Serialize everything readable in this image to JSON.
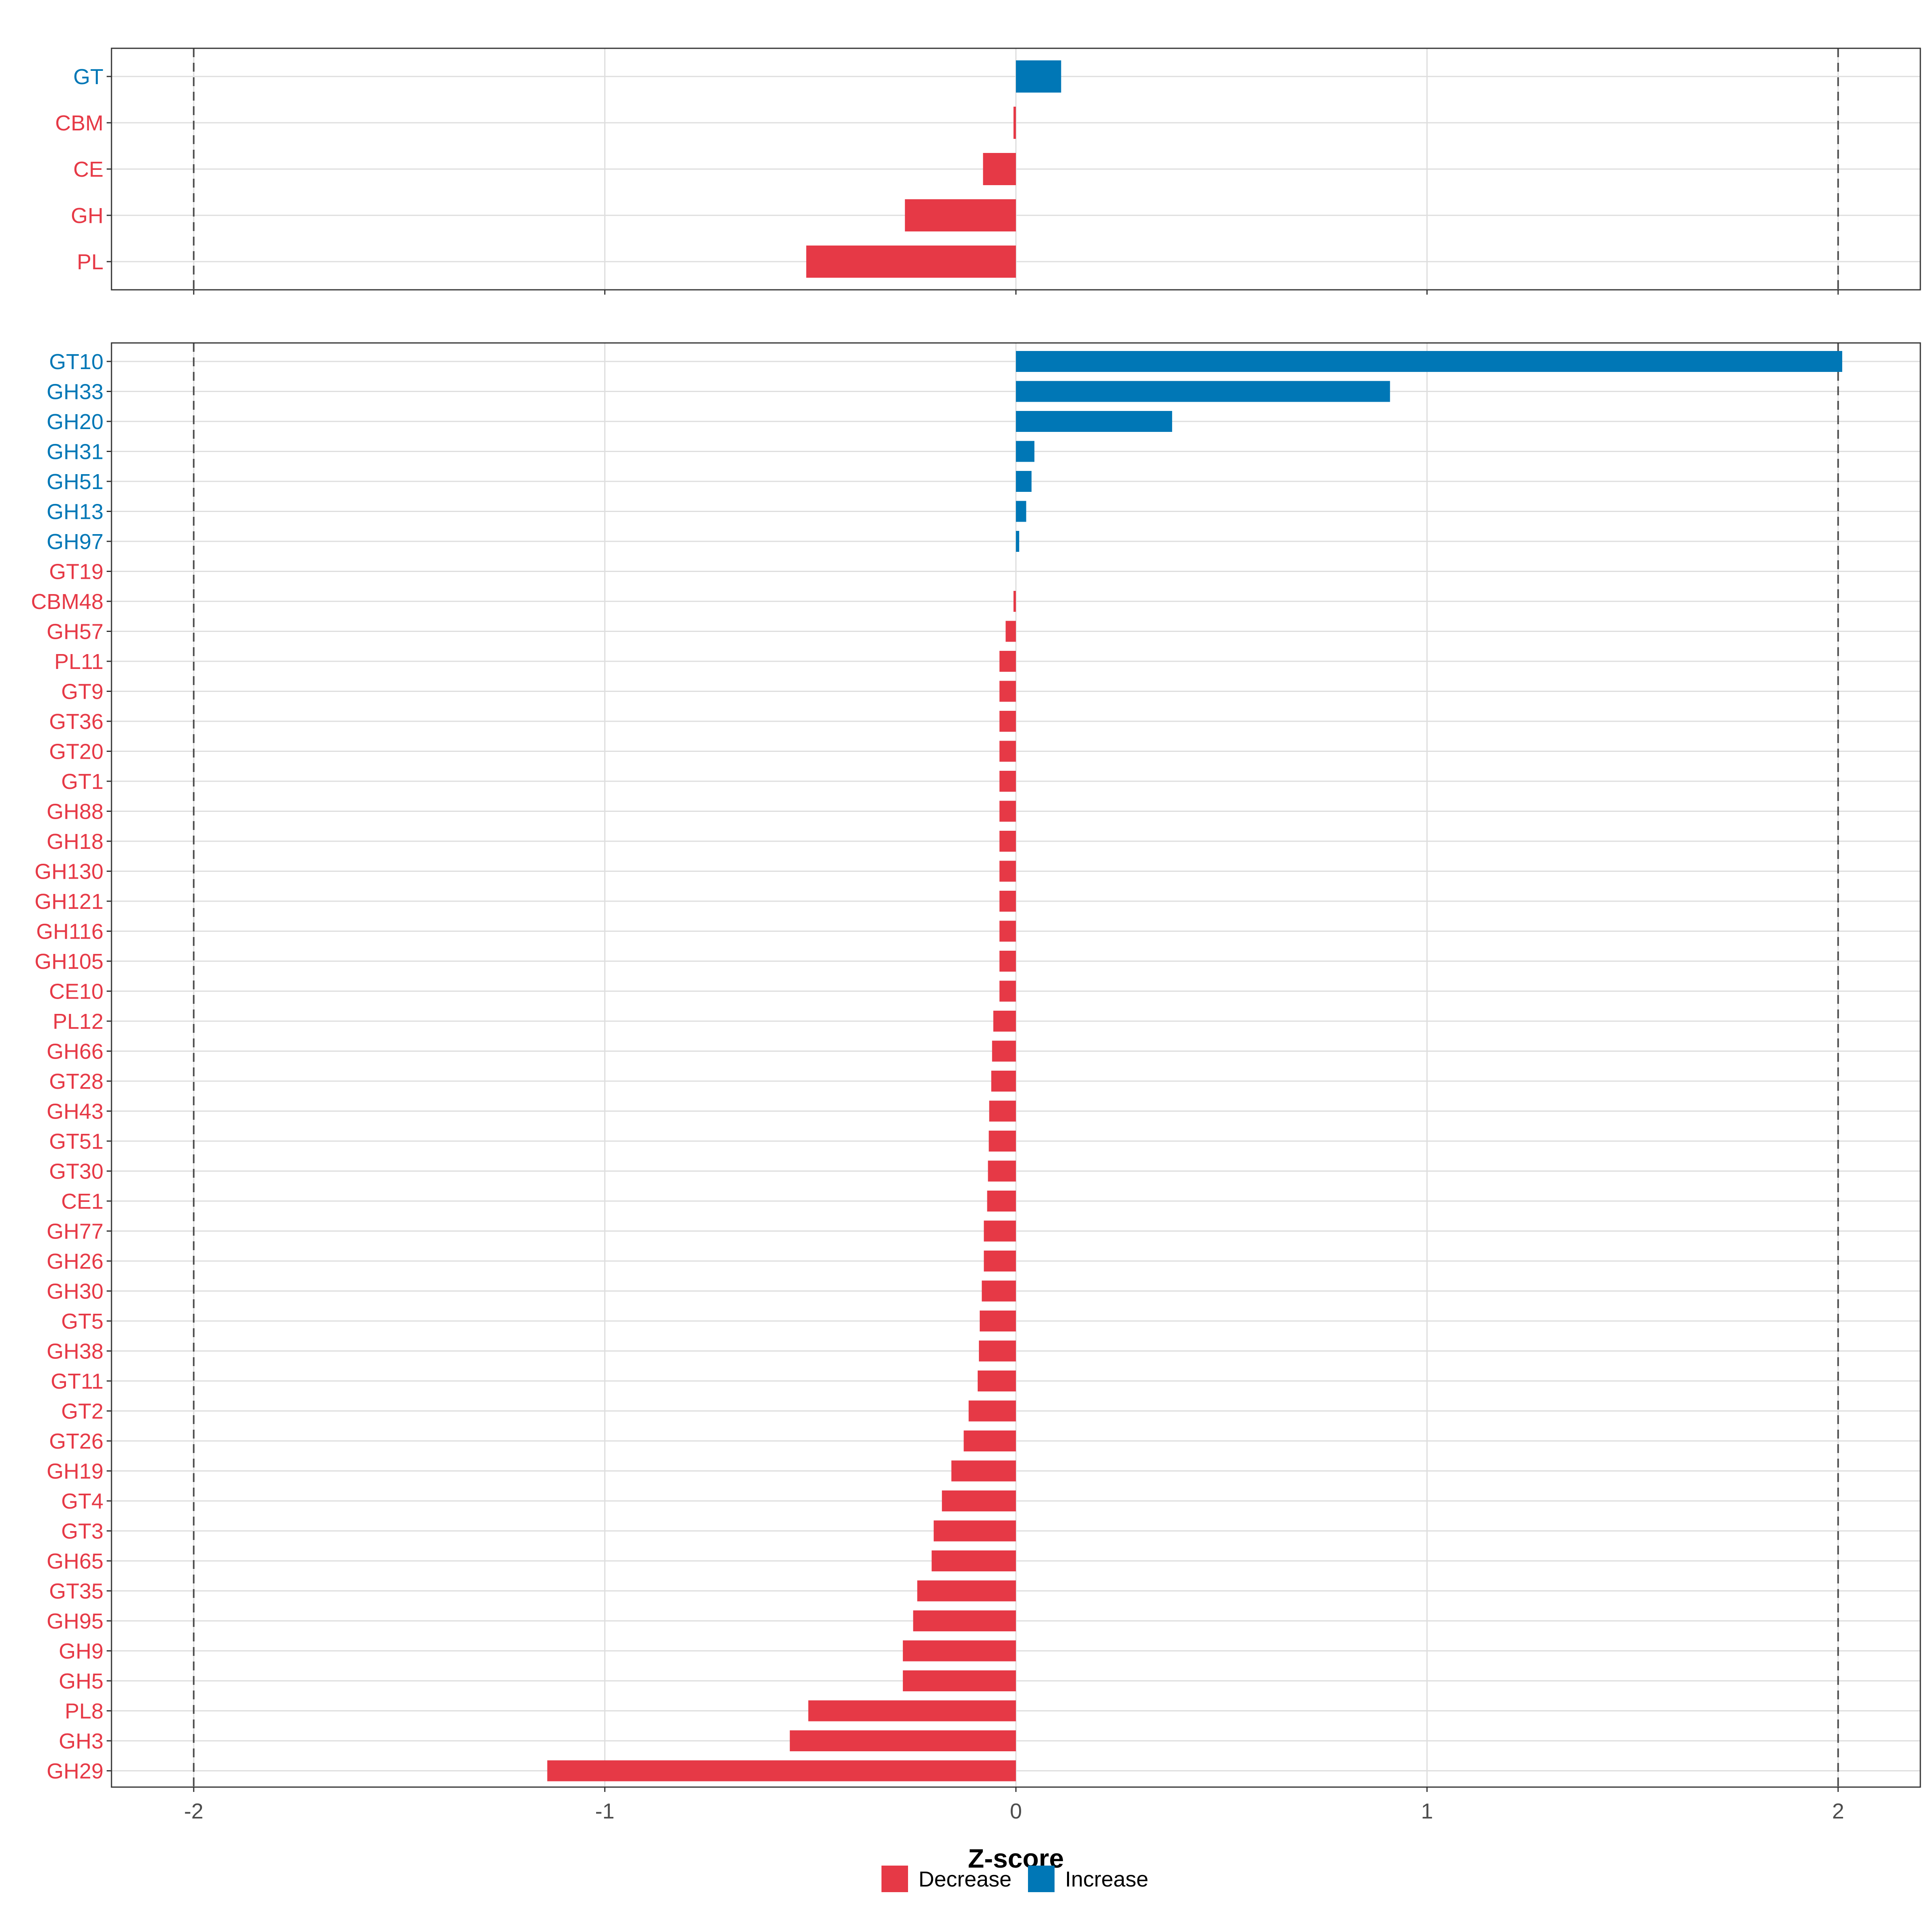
{
  "colors": {
    "decrease": "#e63946",
    "increase": "#0077b6"
  },
  "legend": {
    "items": [
      {
        "key": "decrease",
        "label": "Decrease"
      },
      {
        "key": "increase",
        "label": "Increase"
      }
    ]
  },
  "chart_data": [
    {
      "type": "bar",
      "orientation": "horizontal",
      "title": "",
      "xlabel": "",
      "xlim": [
        -2.2,
        2.2
      ],
      "xticks": [
        -2,
        -1,
        0,
        1,
        2
      ],
      "threshold_lines": [
        -2,
        2
      ],
      "categories": [
        "GT",
        "CBM",
        "CE",
        "GH",
        "PL"
      ],
      "values": [
        0.11,
        -0.004,
        -0.08,
        -0.27,
        -0.51
      ]
    },
    {
      "type": "bar",
      "orientation": "horizontal",
      "title": "",
      "xlabel": "Z-score",
      "xlim": [
        -2.2,
        2.2
      ],
      "xticks": [
        -2,
        -1,
        0,
        1,
        2
      ],
      "tick_labels": [
        "-2",
        "-1",
        "0",
        "1",
        "2"
      ],
      "threshold_lines": [
        -2,
        2
      ],
      "categories": [
        "GT10",
        "GH33",
        "GH20",
        "GH31",
        "GH51",
        "GH13",
        "GH97",
        "GT19",
        "CBM48",
        "GH57",
        "PL11",
        "GT9",
        "GT36",
        "GT20",
        "GT1",
        "GH88",
        "GH18",
        "GH130",
        "GH121",
        "GH116",
        "GH105",
        "CE10",
        "PL12",
        "GH66",
        "GT28",
        "GH43",
        "GT51",
        "GT30",
        "CE1",
        "GH77",
        "GH26",
        "GH30",
        "GT5",
        "GH38",
        "GT11",
        "GT2",
        "GT26",
        "GH19",
        "GT4",
        "GT3",
        "GH65",
        "GT35",
        "GH95",
        "GH9",
        "GH5",
        "PL8",
        "GH3",
        "GH29"
      ],
      "values": [
        2.01,
        0.91,
        0.38,
        0.045,
        0.038,
        0.025,
        0.008,
        0.0,
        -0.004,
        -0.025,
        -0.04,
        -0.04,
        -0.04,
        -0.04,
        -0.04,
        -0.04,
        -0.04,
        -0.04,
        -0.04,
        -0.04,
        -0.04,
        -0.04,
        -0.055,
        -0.058,
        -0.06,
        -0.065,
        -0.066,
        -0.068,
        -0.07,
        -0.078,
        -0.078,
        -0.083,
        -0.088,
        -0.09,
        -0.093,
        -0.115,
        -0.127,
        -0.157,
        -0.18,
        -0.2,
        -0.205,
        -0.24,
        -0.25,
        -0.275,
        -0.275,
        -0.505,
        -0.55,
        -1.14
      ]
    }
  ]
}
